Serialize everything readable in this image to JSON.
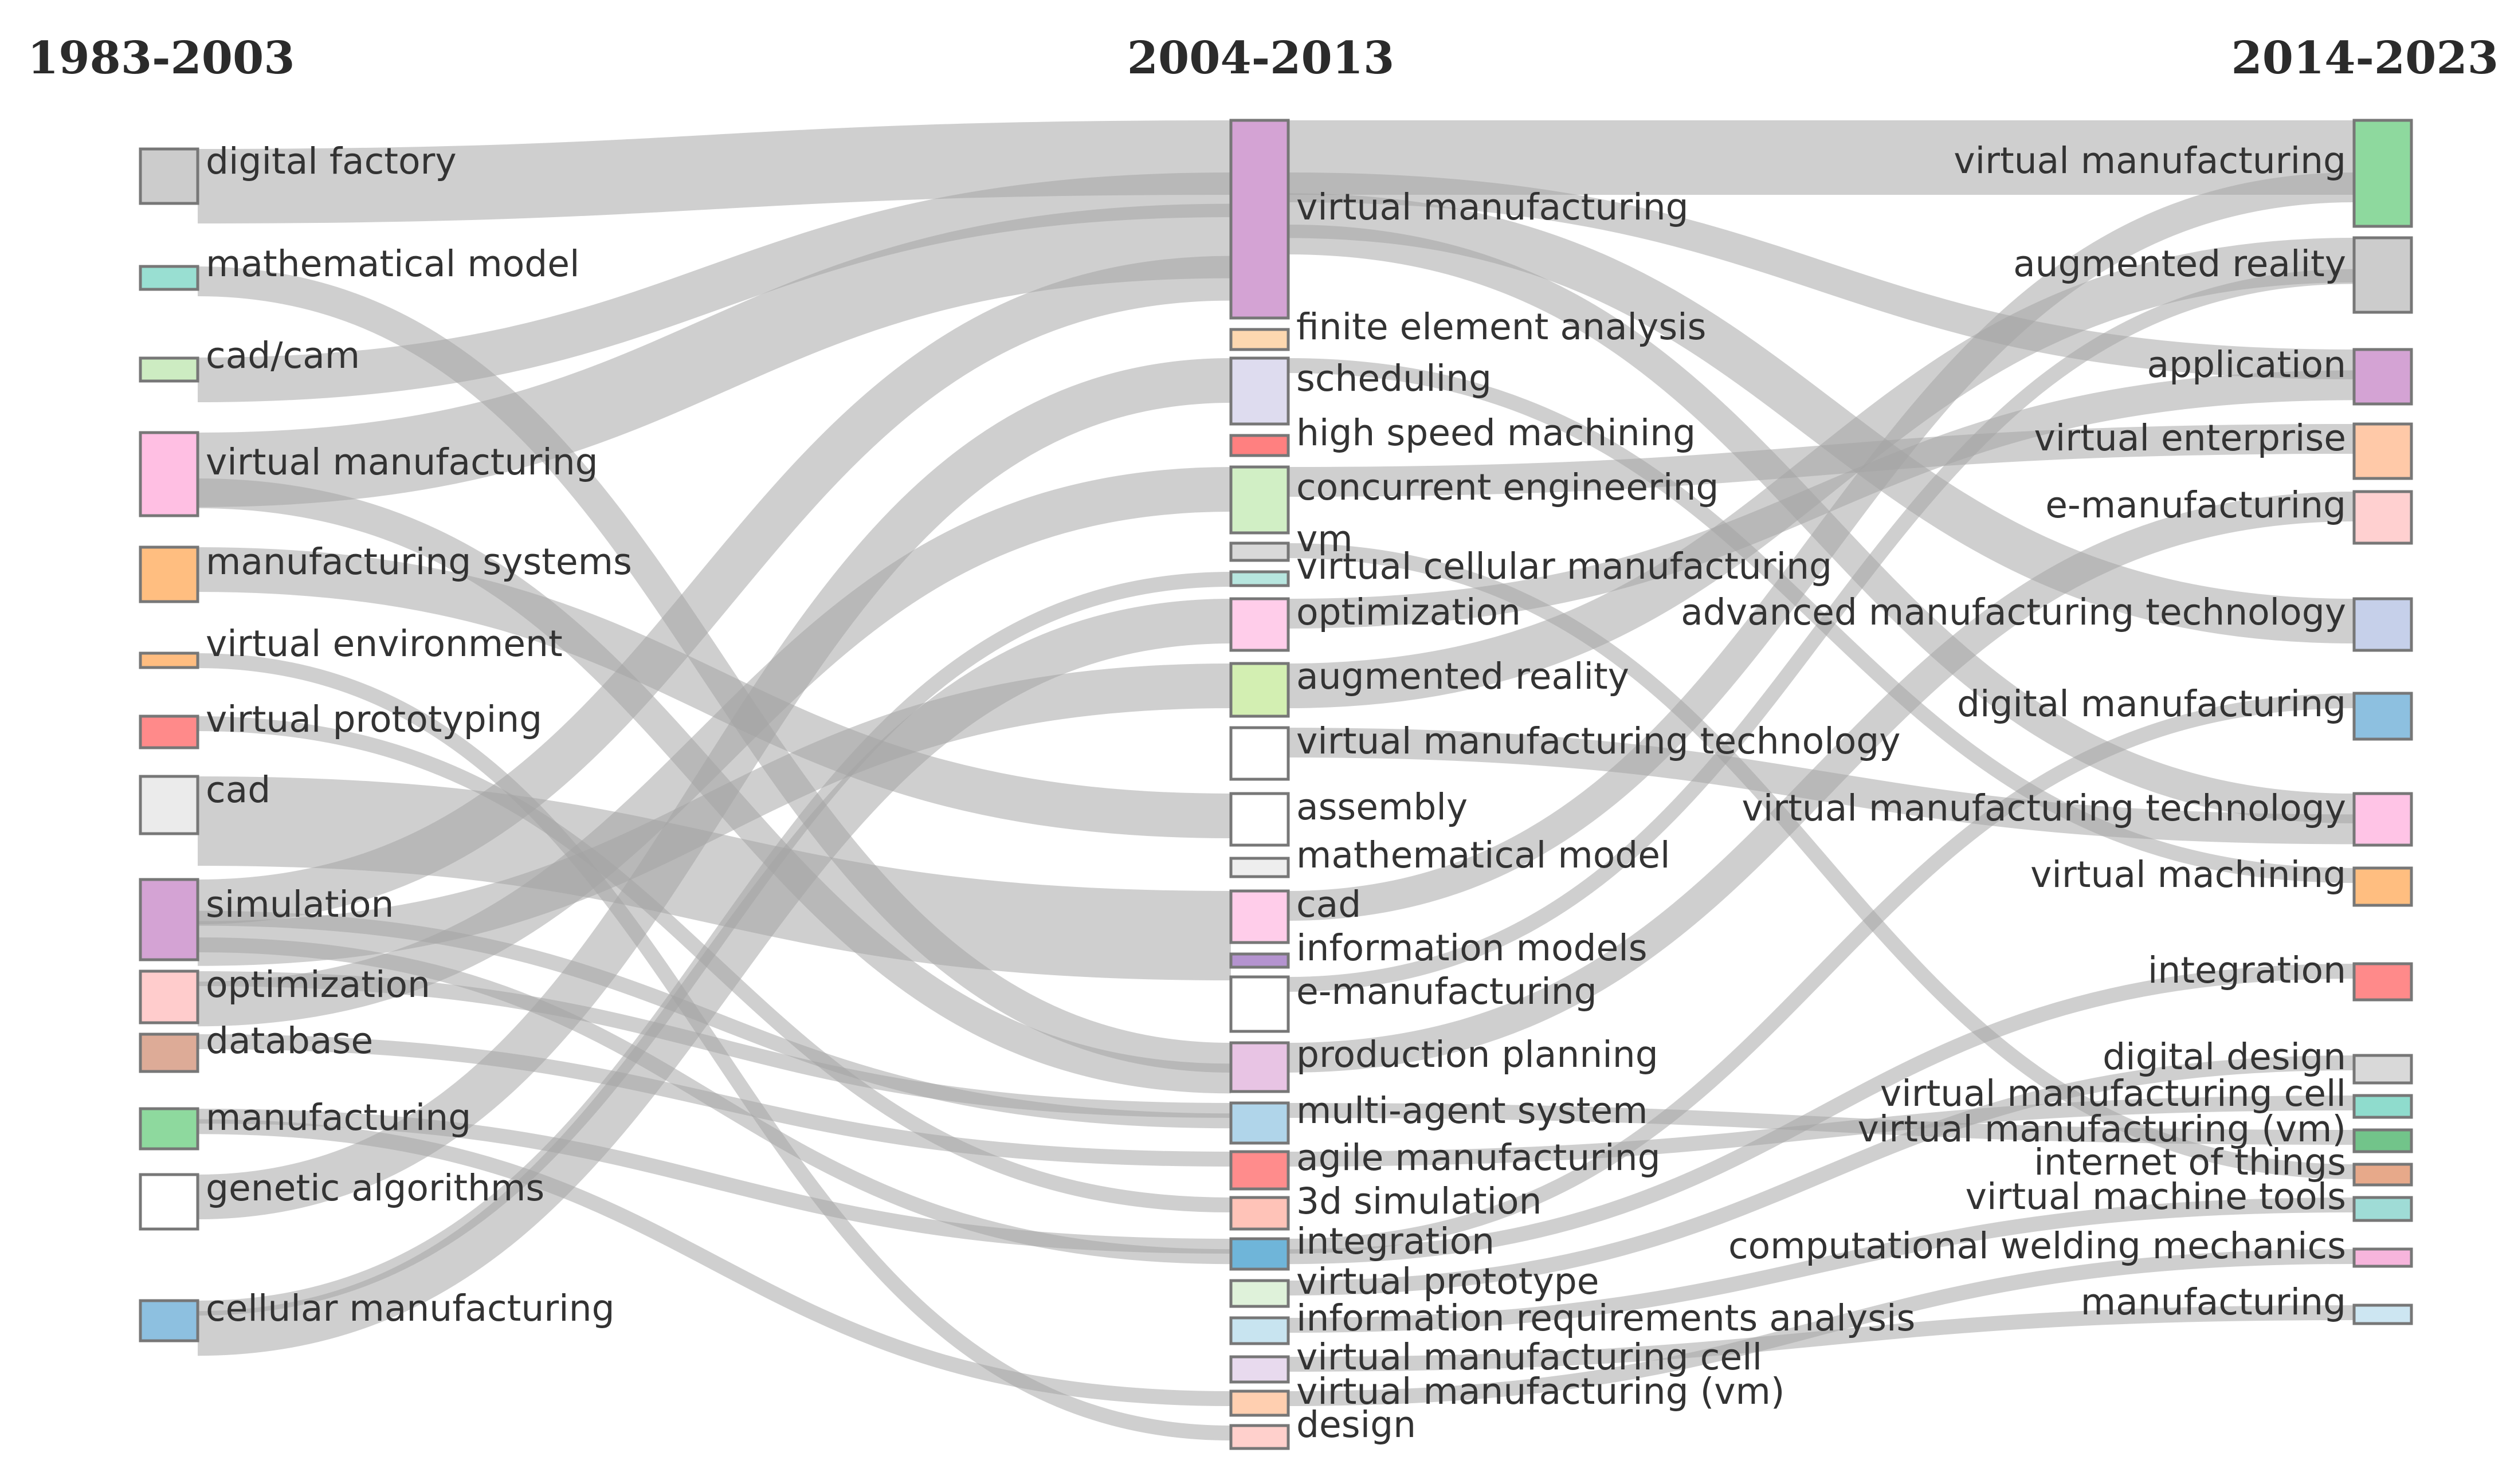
{
  "periods": [
    "1983-2003",
    "2004-2013",
    "2014-2023"
  ],
  "nodes": {
    "0": [
      {
        "id": "a0",
        "label": "digital factory",
        "color": "#cccccc"
      },
      {
        "id": "a1",
        "label": "mathematical model",
        "color": "#99dfd2"
      },
      {
        "id": "a2",
        "label": "cad/cam",
        "color": "#cdecc2"
      },
      {
        "id": "a3",
        "label": "virtual manufacturing",
        "color": "#ffbfe3"
      },
      {
        "id": "a4",
        "label": "manufacturing systems",
        "color": "#ffbe80"
      },
      {
        "id": "a5",
        "label": "virtual environment",
        "color": "#ffbd80"
      },
      {
        "id": "a6",
        "label": "virtual prototyping",
        "color": "#ff8a8a"
      },
      {
        "id": "a7",
        "label": "cad",
        "color": "#ebebeb"
      },
      {
        "id": "a8",
        "label": "simulation",
        "color": "#d4a3d4"
      },
      {
        "id": "a9",
        "label": "optimization",
        "color": "#ffcccc"
      },
      {
        "id": "a10",
        "label": "database",
        "color": "#ddab97"
      },
      {
        "id": "a11",
        "label": "manufacturing",
        "color": "#8ed99e"
      },
      {
        "id": "a12",
        "label": "genetic algorithms",
        "color": "#ffffff"
      },
      {
        "id": "a13",
        "label": "cellular manufacturing",
        "color": "#8dc0e0"
      }
    ],
    "1": [
      {
        "id": "b0",
        "label": "virtual manufacturing",
        "color": "#d4a3d4"
      },
      {
        "id": "b1",
        "label": "finite element analysis",
        "color": "#fdd8b0"
      },
      {
        "id": "b2",
        "label": "scheduling",
        "color": "#dedcef"
      },
      {
        "id": "b3",
        "label": "high speed machining",
        "color": "#ff8080"
      },
      {
        "id": "b4",
        "label": "concurrent engineering",
        "color": "#d1efc5"
      },
      {
        "id": "b5",
        "label": "vm",
        "color": "#d9d9d9"
      },
      {
        "id": "b6",
        "label": "virtual cellular manufacturing",
        "color": "#b7e6df"
      },
      {
        "id": "b7",
        "label": "optimization",
        "color": "#ffcdea"
      },
      {
        "id": "b8",
        "label": "augmented reality",
        "color": "#d3efb2"
      },
      {
        "id": "b9",
        "label": "virtual manufacturing technology",
        "color": "#ffffff"
      },
      {
        "id": "b10",
        "label": "assembly",
        "color": "#ffffff"
      },
      {
        "id": "b11",
        "label": "mathematical model",
        "color": "#eeeeee"
      },
      {
        "id": "b12",
        "label": "cad",
        "color": "#ffcdea"
      },
      {
        "id": "b13",
        "label": "information models",
        "color": "#b493cf"
      },
      {
        "id": "b14",
        "label": "e-manufacturing",
        "color": "#ffffff"
      },
      {
        "id": "b15",
        "label": "production planning",
        "color": "#e8c4e4"
      },
      {
        "id": "b16",
        "label": "multi-agent system",
        "color": "#b0d5ea"
      },
      {
        "id": "b17",
        "label": "agile manufacturing",
        "color": "#ff8c8c"
      },
      {
        "id": "b18",
        "label": "3d simulation",
        "color": "#ffc3b8"
      },
      {
        "id": "b19",
        "label": "integration",
        "color": "#6fb5d9"
      },
      {
        "id": "b20",
        "label": "virtual prototype",
        "color": "#dff2da"
      },
      {
        "id": "b21",
        "label": "information requirements analysis",
        "color": "#c8e4f0"
      },
      {
        "id": "b22",
        "label": "virtual manufacturing cell",
        "color": "#e8daee"
      },
      {
        "id": "b23",
        "label": "virtual manufacturing (vm)",
        "color": "#ffcfb0"
      },
      {
        "id": "b24",
        "label": "design",
        "color": "#ffd0cc"
      }
    ],
    "2": [
      {
        "id": "c0",
        "label": "virtual manufacturing",
        "color": "#8ed99e"
      },
      {
        "id": "c1",
        "label": "augmented reality",
        "color": "#cccccc"
      },
      {
        "id": "c2",
        "label": "application",
        "color": "#d4a3d4"
      },
      {
        "id": "c3",
        "label": "virtual enterprise",
        "color": "#ffc9a8"
      },
      {
        "id": "c4",
        "label": "e-manufacturing",
        "color": "#ffd0d0"
      },
      {
        "id": "c5",
        "label": "advanced manufacturing technology",
        "color": "#c6d0ea"
      },
      {
        "id": "c6",
        "label": "digital manufacturing",
        "color": "#8dc0e0"
      },
      {
        "id": "c7",
        "label": "virtual manufacturing technology",
        "color": "#ffc4e6"
      },
      {
        "id": "c8",
        "label": "virtual machining",
        "color": "#ffbe80"
      },
      {
        "id": "c9",
        "label": "integration",
        "color": "#ff8a8a"
      },
      {
        "id": "c10",
        "label": "digital design",
        "color": "#d9d9d9"
      },
      {
        "id": "c11",
        "label": "virtual manufacturing cell",
        "color": "#8fdccd"
      },
      {
        "id": "c12",
        "label": "virtual manufacturing (vm)",
        "color": "#72c48a"
      },
      {
        "id": "c13",
        "label": "internet of things",
        "color": "#e7a98a"
      },
      {
        "id": "c14",
        "label": "virtual machine tools",
        "color": "#9fdcd6"
      },
      {
        "id": "c15",
        "label": "computational welding mechanics",
        "color": "#f7b5dc"
      },
      {
        "id": "c16",
        "label": "manufacturing",
        "color": "#cde6f2"
      }
    ]
  },
  "flows": [
    {
      "source": "a0",
      "target": "b0",
      "value": 5
    },
    {
      "source": "a2",
      "target": "b0",
      "value": 3
    },
    {
      "source": "a3",
      "target": "b0",
      "value": 5
    },
    {
      "source": "a8",
      "target": "b0",
      "value": 3
    },
    {
      "source": "a7",
      "target": "b12",
      "value": 6
    },
    {
      "source": "a4",
      "target": "b10",
      "value": 3
    },
    {
      "source": "a1",
      "target": "b15",
      "value": 2
    },
    {
      "source": "a3",
      "target": "b15",
      "value": 2
    },
    {
      "source": "a9",
      "target": "b16",
      "value": 1
    },
    {
      "source": "a10",
      "target": "b17",
      "value": 1
    },
    {
      "source": "a8",
      "target": "b16",
      "value": 1
    },
    {
      "source": "a11",
      "target": "b19",
      "value": 1
    },
    {
      "source": "a12",
      "target": "b2",
      "value": 3
    },
    {
      "source": "a13",
      "target": "b6",
      "value": 1
    },
    {
      "source": "a13",
      "target": "b7",
      "value": 3
    },
    {
      "source": "a9",
      "target": "b4",
      "value": 3
    },
    {
      "source": "a8",
      "target": "b8",
      "value": 3
    },
    {
      "source": "a8",
      "target": "b19",
      "value": 1
    },
    {
      "source": "a6",
      "target": "b18",
      "value": 1
    },
    {
      "source": "a5",
      "target": "b24",
      "value": 1
    },
    {
      "source": "a11",
      "target": "b23",
      "value": 1
    },
    {
      "source": "b0",
      "target": "c0",
      "value": 5
    },
    {
      "source": "b0",
      "target": "c2",
      "value": 2
    },
    {
      "source": "b0",
      "target": "c5",
      "value": 3
    },
    {
      "source": "b0",
      "target": "c7",
      "value": 2
    },
    {
      "source": "b8",
      "target": "c1",
      "value": 3
    },
    {
      "source": "b9",
      "target": "c7",
      "value": 2
    },
    {
      "source": "b7",
      "target": "c2",
      "value": 2
    },
    {
      "source": "b4",
      "target": "c3",
      "value": 2
    },
    {
      "source": "b12",
      "target": "c0",
      "value": 2
    },
    {
      "source": "b15",
      "target": "c4",
      "value": 2
    },
    {
      "source": "b16",
      "target": "c12",
      "value": 1
    },
    {
      "source": "b17",
      "target": "c11",
      "value": 1
    },
    {
      "source": "b19",
      "target": "c6",
      "value": 1
    },
    {
      "source": "b19",
      "target": "c9",
      "value": 1
    },
    {
      "source": "b20",
      "target": "c10",
      "value": 1
    },
    {
      "source": "b21",
      "target": "c14",
      "value": 1
    },
    {
      "source": "b22",
      "target": "c16",
      "value": 1
    },
    {
      "source": "b23",
      "target": "c15",
      "value": 1
    },
    {
      "source": "b14",
      "target": "c1",
      "value": 1
    },
    {
      "source": "b2",
      "target": "c8",
      "value": 1
    },
    {
      "source": "b5",
      "target": "c13",
      "value": 1
    }
  ]
}
